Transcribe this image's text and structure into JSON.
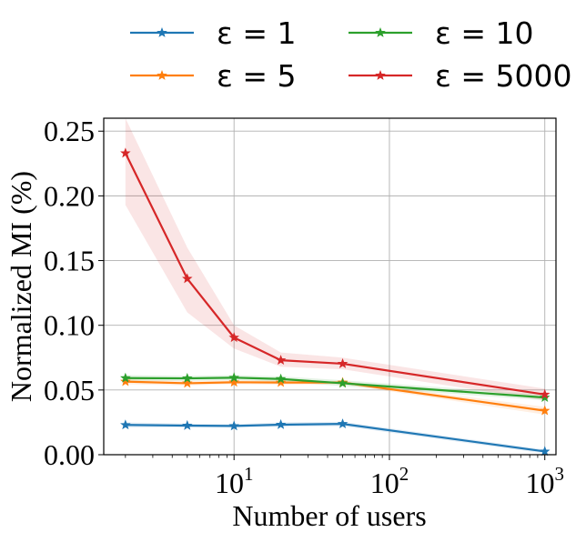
{
  "chart_data": {
    "type": "line",
    "x_scale": "log",
    "xlabel": "Number of users",
    "ylabel": "Normalized MI (%)",
    "xlim": [
      1.45,
      1180
    ],
    "ylim": [
      0.0,
      0.26
    ],
    "grid": true,
    "legend_position": "top, above plot, 2 columns",
    "x_ticks": [
      {
        "value": 10,
        "base": "10",
        "exp": "1"
      },
      {
        "value": 100,
        "base": "10",
        "exp": "2"
      },
      {
        "value": 1000,
        "base": "10",
        "exp": "3"
      }
    ],
    "y_ticks": [
      {
        "value": 0.0,
        "label": "0.00"
      },
      {
        "value": 0.05,
        "label": "0.05"
      },
      {
        "value": 0.1,
        "label": "0.10"
      },
      {
        "value": 0.15,
        "label": "0.15"
      },
      {
        "value": 0.2,
        "label": "0.20"
      },
      {
        "value": 0.25,
        "label": "0.25"
      }
    ],
    "x": [
      2,
      5,
      10,
      20,
      50,
      1000
    ],
    "series": [
      {
        "name": "eps1",
        "legend_label": "ε = 1",
        "color": "#1f77b4",
        "values": [
          0.023,
          0.0225,
          0.0222,
          0.0232,
          0.0238,
          0.0025
        ],
        "lower": [
          0.021,
          0.021,
          0.021,
          0.0215,
          0.022,
          0.001
        ],
        "upper": [
          0.025,
          0.024,
          0.0235,
          0.025,
          0.0255,
          0.004
        ]
      },
      {
        "name": "eps5",
        "legend_label": "ε = 5",
        "color": "#ff7f0e",
        "values": [
          0.0565,
          0.0552,
          0.056,
          0.0558,
          0.0558,
          0.034
        ],
        "lower": [
          0.0545,
          0.0535,
          0.0545,
          0.054,
          0.0545,
          0.031
        ],
        "upper": [
          0.0585,
          0.057,
          0.0575,
          0.0575,
          0.057,
          0.037
        ]
      },
      {
        "name": "eps10",
        "legend_label": "ε = 10",
        "color": "#2ca02c",
        "values": [
          0.0592,
          0.059,
          0.0595,
          0.0585,
          0.0552,
          0.0442
        ],
        "lower": [
          0.057,
          0.057,
          0.0575,
          0.0565,
          0.053,
          0.042
        ],
        "upper": [
          0.0615,
          0.061,
          0.0615,
          0.0605,
          0.0575,
          0.0465
        ]
      },
      {
        "name": "eps5000",
        "legend_label": "ε = 5000",
        "color": "#d62728",
        "values": [
          0.233,
          0.136,
          0.0905,
          0.073,
          0.0703,
          0.0465
        ],
        "lower": [
          0.193,
          0.11,
          0.082,
          0.068,
          0.066,
          0.042
        ],
        "upper": [
          0.268,
          0.16,
          0.1,
          0.079,
          0.075,
          0.051
        ]
      }
    ]
  }
}
